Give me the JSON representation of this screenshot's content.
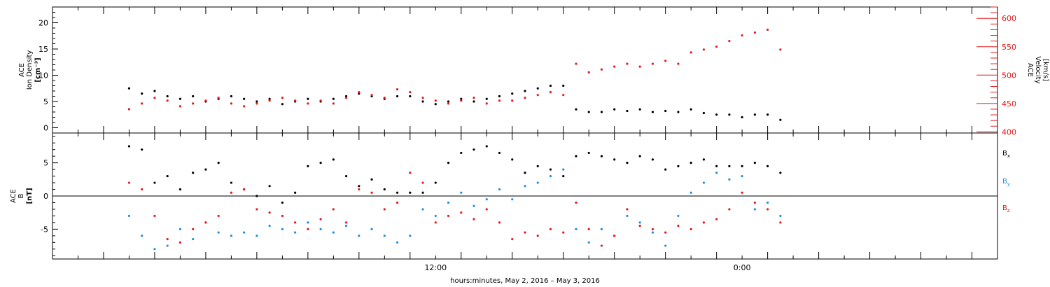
{
  "colors": {
    "black": "#000000",
    "red": "#e41a1c",
    "blue": "#1f8fe0"
  },
  "chart_data": [
    {
      "type": "scatter",
      "panel": "top",
      "ylabel_left": [
        "ACE",
        "Ion Density",
        "[cm⁻³]"
      ],
      "ylabel_right": [
        "ACE",
        "Velocity",
        "[km/s]"
      ],
      "y_left_ticks": [
        0,
        5,
        10,
        15,
        20
      ],
      "y_left_range": [
        -1,
        23
      ],
      "y_right_ticks": [
        400,
        450,
        500,
        550,
        600
      ],
      "y_right_range": [
        398,
        620
      ],
      "series": [
        {
          "color": "#000000",
          "axis": "left",
          "x": [
            0.0,
            0.5,
            1.0,
            1.5,
            2.0,
            2.5,
            3.0,
            3.5,
            4.0,
            4.5,
            5.0,
            5.5,
            6.0,
            6.5,
            7.0,
            7.5,
            8.0,
            8.5,
            9.0,
            9.5,
            10.0,
            10.5,
            11.0,
            11.5,
            12.0,
            12.5,
            13.0,
            13.5,
            14.0,
            14.5,
            15.0,
            15.5,
            16.0,
            16.5,
            17.0,
            17.5,
            18.0,
            18.5,
            19.0,
            19.5,
            20.0,
            20.5,
            21.0,
            21.5,
            22.0,
            22.5,
            23.0,
            23.5,
            24.0,
            24.5,
            25.0,
            25.5
          ],
          "y": [
            7.5,
            6.5,
            7.0,
            6.0,
            5.5,
            6.0,
            5.0,
            5.5,
            6.0,
            5.5,
            5.0,
            5.5,
            4.5,
            5.0,
            5.5,
            5.0,
            5.5,
            6.0,
            6.5,
            6.0,
            5.5,
            6.0,
            6.0,
            5.0,
            4.5,
            5.0,
            5.5,
            5.0,
            5.5,
            6.0,
            6.5,
            7.0,
            7.5,
            8.0,
            8.0,
            3.5,
            3.0,
            3.0,
            3.5,
            3.2,
            3.5,
            3.0,
            3.2,
            3.0,
            3.5,
            2.8,
            2.5,
            2.5,
            2.0,
            2.5,
            2.5,
            1.5
          ]
        },
        {
          "color": "#e41a1c",
          "axis": "right",
          "x": [
            0.0,
            0.5,
            1.0,
            1.5,
            2.0,
            2.5,
            3.0,
            3.5,
            4.0,
            4.5,
            5.0,
            5.5,
            6.0,
            6.5,
            7.0,
            7.5,
            8.0,
            8.5,
            9.0,
            9.5,
            10.0,
            10.5,
            11.0,
            11.5,
            12.0,
            12.5,
            13.0,
            13.5,
            14.0,
            14.5,
            15.0,
            15.5,
            16.0,
            16.5,
            17.0,
            17.5,
            18.0,
            18.5,
            19.0,
            19.5,
            20.0,
            20.5,
            21.0,
            21.5,
            22.0,
            22.5,
            23.0,
            23.5,
            24.0,
            24.5,
            25.0,
            25.5
          ],
          "y": [
            440,
            450,
            460,
            455,
            445,
            450,
            455,
            460,
            450,
            445,
            450,
            455,
            460,
            455,
            450,
            455,
            450,
            460,
            470,
            465,
            460,
            475,
            470,
            460,
            455,
            450,
            455,
            460,
            450,
            455,
            455,
            460,
            465,
            470,
            465,
            520,
            505,
            510,
            515,
            520,
            515,
            520,
            525,
            520,
            540,
            545,
            550,
            560,
            570,
            575,
            580,
            545
          ]
        }
      ]
    },
    {
      "type": "scatter",
      "panel": "bottom",
      "ylabel": [
        "ACE",
        "B",
        "[nT]"
      ],
      "y_ticks": [
        -5,
        0,
        5
      ],
      "y_range": [
        -9.5,
        9.5
      ],
      "legend": [
        {
          "label": "Bx",
          "color": "#000000"
        },
        {
          "label": "By",
          "color": "#1f8fe0"
        },
        {
          "label": "Bz",
          "color": "#e41a1c"
        }
      ],
      "series": [
        {
          "color": "#000000",
          "x": [
            0.0,
            0.5,
            1.0,
            1.5,
            2.0,
            2.5,
            3.0,
            3.5,
            4.0,
            4.5,
            5.0,
            5.5,
            6.0,
            6.5,
            7.0,
            7.5,
            8.0,
            8.5,
            9.0,
            9.5,
            10.0,
            10.5,
            11.0,
            11.5,
            12.0,
            12.5,
            13.0,
            13.5,
            14.0,
            14.5,
            15.0,
            15.5,
            16.0,
            16.5,
            17.0,
            17.5,
            18.0,
            18.5,
            19.0,
            19.5,
            20.0,
            20.5,
            21.0,
            21.5,
            22.0,
            22.5,
            23.0,
            23.5,
            24.0,
            24.5,
            25.0,
            25.5
          ],
          "y": [
            7.5,
            7.0,
            2.0,
            3.0,
            1.0,
            3.5,
            4.0,
            5.0,
            2.0,
            1.0,
            0.0,
            1.5,
            -1.0,
            0.5,
            4.5,
            5.0,
            5.5,
            3.0,
            1.5,
            2.5,
            1.0,
            0.5,
            0.5,
            0.5,
            2.0,
            5.0,
            6.5,
            7.0,
            7.5,
            6.5,
            5.5,
            3.5,
            4.5,
            4.0,
            3.0,
            6.0,
            6.5,
            6.0,
            5.5,
            5.0,
            6.0,
            5.5,
            4.0,
            4.5,
            5.0,
            5.5,
            4.5,
            4.5,
            4.5,
            5.0,
            4.5,
            3.5
          ]
        },
        {
          "color": "#1f8fe0",
          "x": [
            0.0,
            0.5,
            1.0,
            1.5,
            2.0,
            2.5,
            3.0,
            3.5,
            4.0,
            4.5,
            5.0,
            5.5,
            6.0,
            6.5,
            7.0,
            7.5,
            8.0,
            8.5,
            9.0,
            9.5,
            10.0,
            10.5,
            11.0,
            11.5,
            12.0,
            12.5,
            13.0,
            13.5,
            14.0,
            14.5,
            15.0,
            15.5,
            16.0,
            16.5,
            17.0,
            17.5,
            18.0,
            18.5,
            19.0,
            19.5,
            20.0,
            20.5,
            21.0,
            21.5,
            22.0,
            22.5,
            23.0,
            23.5,
            24.0,
            24.5,
            25.0,
            25.5
          ],
          "y": [
            -3.0,
            -6.0,
            -8.0,
            -7.5,
            -5.0,
            -6.5,
            -4.0,
            -5.5,
            -6.0,
            -5.5,
            -6.0,
            -4.5,
            -5.0,
            -5.5,
            -4.0,
            -5.0,
            -5.5,
            -4.5,
            -6.0,
            -5.0,
            -6.0,
            -7.0,
            -6.0,
            -2.0,
            -3.0,
            -1.0,
            0.5,
            -1.5,
            -0.5,
            1.0,
            -0.5,
            1.5,
            2.0,
            3.0,
            4.0,
            -5.0,
            -7.0,
            -5.0,
            -6.0,
            -3.0,
            -4.0,
            -5.5,
            -7.5,
            -3.0,
            0.5,
            2.0,
            3.5,
            2.5,
            3.0,
            -2.0,
            -1.0,
            -3.0
          ]
        },
        {
          "color": "#e41a1c",
          "x": [
            0.0,
            0.5,
            1.0,
            1.5,
            2.0,
            2.5,
            3.0,
            3.5,
            4.0,
            4.5,
            5.0,
            5.5,
            6.0,
            6.5,
            7.0,
            7.5,
            8.0,
            8.5,
            9.0,
            9.5,
            10.0,
            10.5,
            11.0,
            11.5,
            12.0,
            12.5,
            13.0,
            13.5,
            14.0,
            14.5,
            15.0,
            15.5,
            16.0,
            16.5,
            17.0,
            17.5,
            18.0,
            18.5,
            19.0,
            19.5,
            20.0,
            20.5,
            21.0,
            21.5,
            22.0,
            22.5,
            23.0,
            23.5,
            24.0,
            24.5,
            25.0,
            25.5
          ],
          "y": [
            2.0,
            1.0,
            -3.0,
            -6.5,
            -7.0,
            -5.0,
            -4.0,
            -3.0,
            0.5,
            1.0,
            -2.0,
            -2.5,
            -3.0,
            -4.0,
            -5.0,
            -3.5,
            -2.0,
            -4.0,
            1.0,
            0.5,
            -2.0,
            -1.0,
            3.5,
            2.0,
            -4.0,
            -3.0,
            -2.5,
            -3.5,
            -2.0,
            -4.0,
            -6.5,
            -5.5,
            -6.0,
            -5.0,
            -5.5,
            -1.0,
            -5.0,
            -7.5,
            -6.0,
            -2.0,
            -4.5,
            -5.0,
            -5.5,
            -4.5,
            -5.0,
            -4.0,
            -3.5,
            -2.0,
            0.5,
            -1.0,
            -2.0,
            -4.0
          ]
        }
      ]
    }
  ],
  "x_axis": {
    "title": "hours:minutes, May  2, 2016 – May  3, 2016",
    "x_range": [
      -3,
      34
    ],
    "tick_labels": [
      {
        "x": 12,
        "label": "12:00"
      },
      {
        "x": 24,
        "label": "0:00"
      }
    ],
    "major_ticks": [
      -3,
      -1,
      1,
      3,
      5,
      7,
      9,
      11,
      13,
      15,
      17,
      19,
      21,
      23,
      25,
      27,
      29,
      31,
      33
    ]
  },
  "legend_labels": {
    "bx": "B",
    "bx_sub": "x",
    "by": "B",
    "by_sub": "y",
    "bz": "B",
    "bz_sub": "z"
  }
}
